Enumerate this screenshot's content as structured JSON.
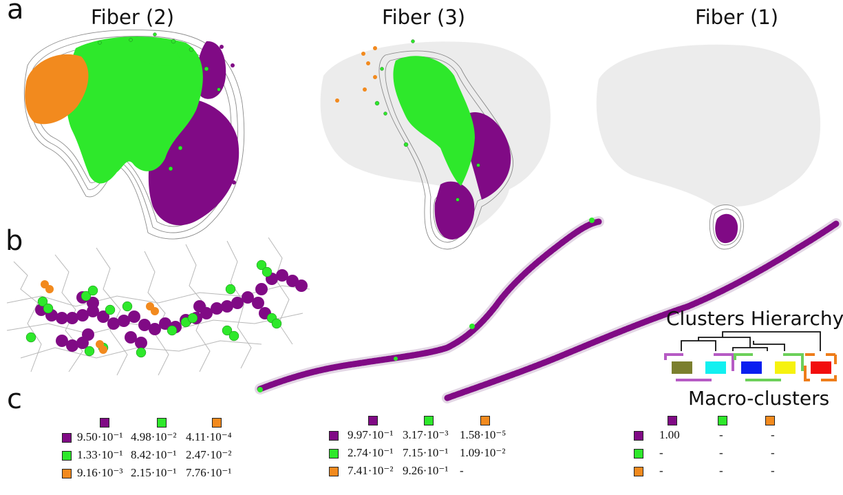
{
  "panel_letters": [
    "a",
    "b",
    "c"
  ],
  "fibers": [
    {
      "title": "Fiber (2)"
    },
    {
      "title": "Fiber (3)"
    },
    {
      "title": "Fiber (1)"
    }
  ],
  "clusters_hierarchy_title": "Clusters Hierarchy",
  "macro_clusters_title": "Macro-clusters",
  "colors": {
    "purple": "#800a85",
    "green": "#2ee82b",
    "orange": "#f28a1e",
    "olive": "#7b7f2e",
    "cyan": "#12f0f0",
    "blue": "#0a1ff0",
    "yellow": "#f6f20e",
    "red": "#f20d0d",
    "bracket_purple": "#b65bc4",
    "bracket_green": "#6cd05a",
    "bracket_orange": "#ee7d1a",
    "silhouette": "#ececec"
  },
  "matrices": [
    {
      "header_colors": [
        "purple",
        "green",
        "orange"
      ],
      "rows": [
        {
          "color": "purple",
          "cells": [
            "9.50·10⁻¹",
            "4.98·10⁻²",
            "4.11·10⁻⁴"
          ]
        },
        {
          "color": "green",
          "cells": [
            "1.33·10⁻¹",
            "8.42·10⁻¹",
            "2.47·10⁻²"
          ]
        },
        {
          "color": "orange",
          "cells": [
            "9.16·10⁻³",
            "2.15·10⁻¹",
            "7.76·10⁻¹"
          ]
        }
      ]
    },
    {
      "header_colors": [
        "purple",
        "green",
        "orange"
      ],
      "rows": [
        {
          "color": "purple",
          "cells": [
            "9.97·10⁻¹",
            "3.17·10⁻³",
            "1.58·10⁻⁵"
          ]
        },
        {
          "color": "green",
          "cells": [
            "2.74·10⁻¹",
            "7.15·10⁻¹",
            "1.09·10⁻²"
          ]
        },
        {
          "color": "orange",
          "cells": [
            "7.41·10⁻²",
            "9.26·10⁻¹",
            "-"
          ]
        }
      ]
    },
    {
      "header_colors": [
        "purple",
        "green",
        "orange"
      ],
      "rows": [
        {
          "color": "purple",
          "cells": [
            "1.00",
            "-",
            "-"
          ]
        },
        {
          "color": "green",
          "cells": [
            "-",
            "-",
            "-"
          ]
        },
        {
          "color": "orange",
          "cells": [
            "-",
            "-",
            "-"
          ]
        }
      ]
    }
  ]
}
